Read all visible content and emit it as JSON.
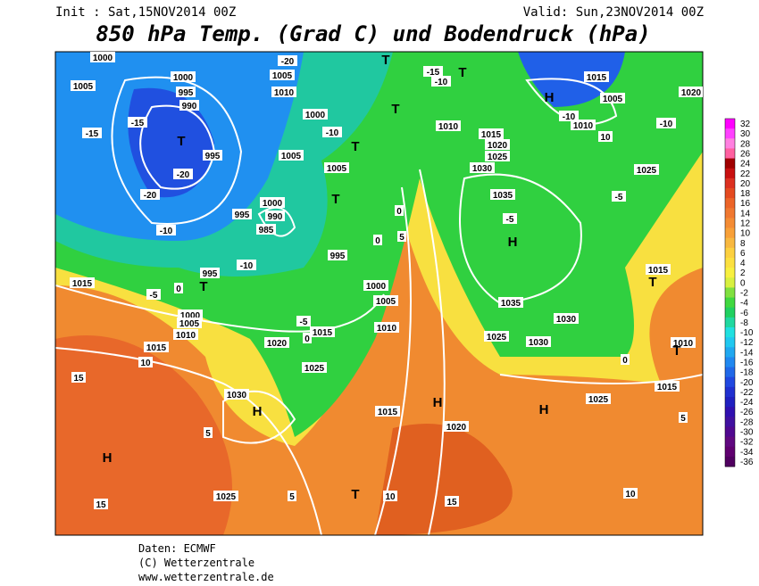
{
  "header": {
    "init": "Init : Sat,15NOV2014 00Z",
    "valid": "Valid: Sun,23NOV2014 00Z",
    "title": "850 hPa Temp. (Grad C) und Bodendruck (hPa)"
  },
  "map_labels": [
    "1000",
    "1005",
    "1000",
    "995",
    "990",
    "-15",
    "-15",
    "T",
    "995",
    "-20",
    "-20",
    "-10",
    "1015",
    "T",
    "995",
    "-5",
    "1000",
    "1005",
    "1010",
    "1015",
    "10",
    "15",
    "1030",
    "H",
    "5",
    "H",
    "1025",
    "15",
    "5",
    "T",
    "10",
    "15",
    "1020",
    "H",
    "1015",
    "1025",
    "1020",
    "-5",
    "1015",
    "1010",
    "1005",
    "1000",
    "995",
    "-10",
    "1000",
    "990",
    "985",
    "995",
    "T",
    "1005",
    "1005",
    "T",
    "1000",
    "-10",
    "-20",
    "1005",
    "1010",
    "T",
    "-15",
    "T",
    "-10",
    "T",
    "1010",
    "1015",
    "1020",
    "1025",
    "1030",
    "1035",
    "-5",
    "H",
    "1035",
    "1030",
    "1025",
    "1030",
    "1025",
    "H",
    "10",
    "5",
    "1015",
    "1010",
    "T",
    "1015",
    "T",
    "1025",
    "-10",
    "1005",
    "1015",
    "H",
    "-10",
    "1010",
    "10",
    "1020",
    "-5",
    "0",
    "0",
    "0",
    "0",
    "5",
    "0"
  ],
  "colorbar": {
    "labels": [
      32,
      30,
      28,
      26,
      24,
      22,
      20,
      18,
      16,
      14,
      12,
      10,
      8,
      6,
      4,
      2,
      0,
      -2,
      -4,
      -6,
      -8,
      -10,
      -12,
      -14,
      -16,
      -18,
      -20,
      -22,
      -24,
      -26,
      -28,
      -30,
      -32,
      -34,
      -36
    ],
    "colors": [
      "#ff00ff",
      "#ff40ff",
      "#ff80e0",
      "#ff60a0",
      "#a00000",
      "#c81010",
      "#dc3020",
      "#e44a20",
      "#ec6428",
      "#f07830",
      "#f48c34",
      "#f8a038",
      "#f8b840",
      "#fcd040",
      "#fce040",
      "#f8f040",
      "#d8f040",
      "#80e040",
      "#40d840",
      "#20d060",
      "#20d8a0",
      "#20e0e0",
      "#20c8f0",
      "#20a8f0",
      "#2088f0",
      "#2068e8",
      "#2048e0",
      "#2030d0",
      "#2020c0",
      "#3010b0",
      "#4010a0",
      "#500890",
      "#600880",
      "#600070",
      "#500060"
    ]
  },
  "footer": [
    "Daten: ECMWF",
    "(C) Wetterzentrale",
    "www.wetterzentrale.de"
  ]
}
